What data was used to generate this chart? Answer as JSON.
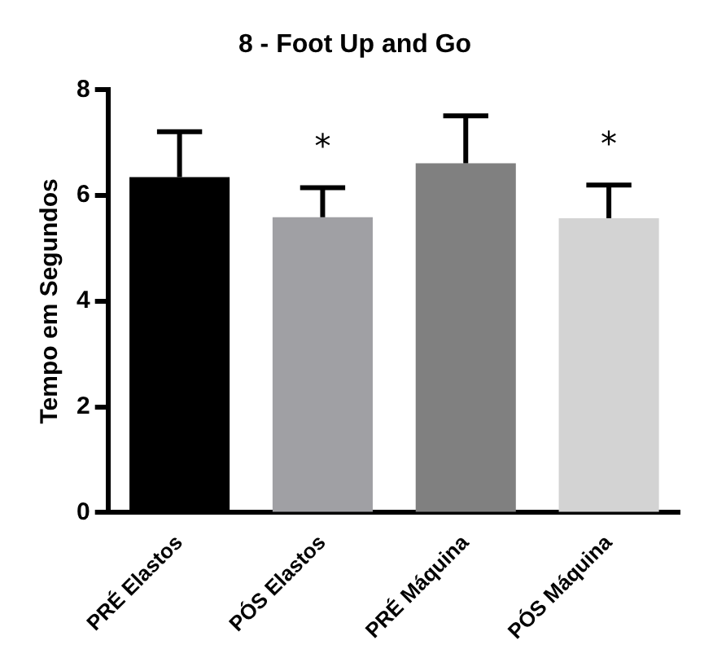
{
  "chart_data": {
    "type": "bar",
    "title": "8 - Foot Up and Go",
    "ylabel": "Tempo em Segundos",
    "categories": [
      "PRÉ Elastos",
      "PÓS Elastos",
      "PRÉ Máquina",
      "PÓS Máquina"
    ],
    "values": [
      6.35,
      5.59,
      6.61,
      5.57
    ],
    "colors": [
      "#000000",
      "#a0a0a4",
      "#808080",
      "#d3d3d3"
    ],
    "errors": [
      [
        6.35,
        7.21
      ],
      [
        5.59,
        6.15
      ],
      [
        6.61,
        7.51
      ],
      [
        5.57,
        6.2
      ]
    ],
    "ylim": [
      0,
      8
    ],
    "yticks": [
      0,
      2,
      4,
      6,
      8
    ],
    "grid": false,
    "legend": false,
    "annotations": [
      {
        "text": "*",
        "x": "PÓS Elastos",
        "y": 6.15
      },
      {
        "text": "*",
        "x": "PÓS Máquina",
        "y": 6.2
      }
    ]
  }
}
